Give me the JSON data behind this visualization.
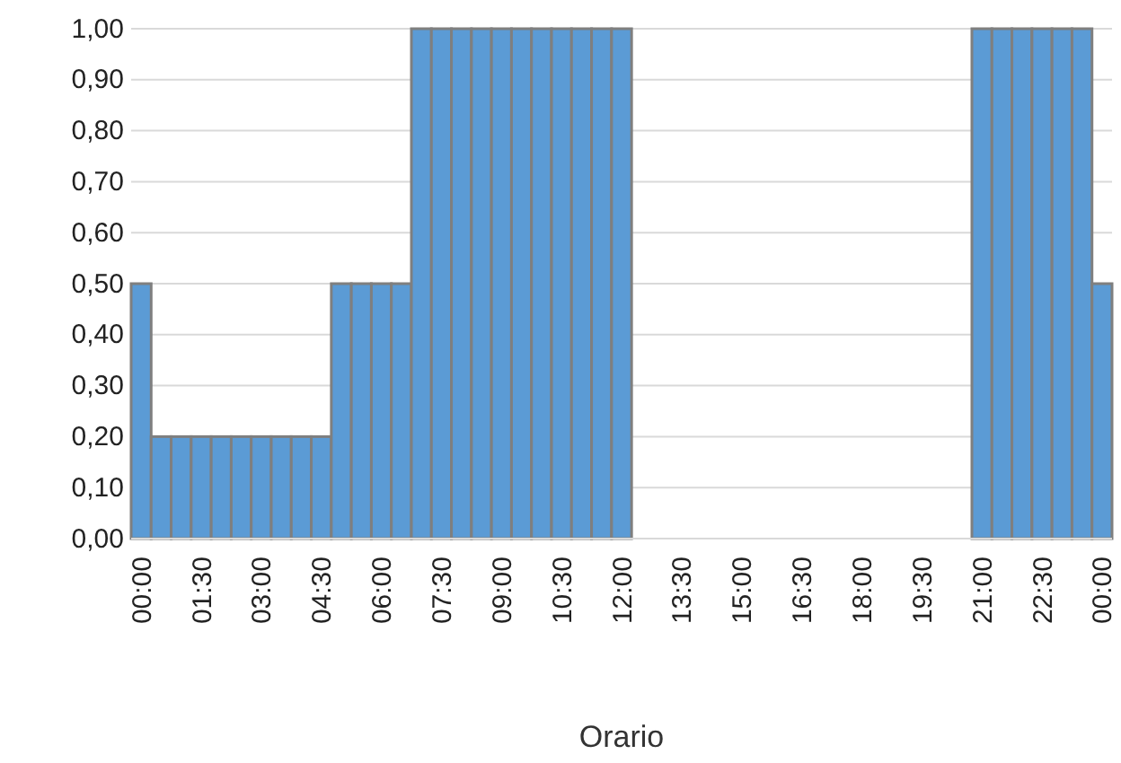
{
  "chart_data": {
    "type": "bar",
    "xlabel": "Orario",
    "categories": [
      "00:00",
      null,
      null,
      "01:30",
      null,
      null,
      "03:00",
      null,
      null,
      "04:30",
      null,
      null,
      "06:00",
      null,
      null,
      "07:30",
      null,
      null,
      "09:00",
      null,
      null,
      "10:30",
      null,
      null,
      "12:00",
      null,
      null,
      "13:30",
      null,
      null,
      "15:00",
      null,
      null,
      "16:30",
      null,
      null,
      "18:00",
      null,
      null,
      "19:30",
      null,
      null,
      "21:00",
      null,
      null,
      "22:30",
      null,
      null,
      "00:00"
    ],
    "values": [
      0.5,
      0.2,
      0.2,
      0.2,
      0.2,
      0.2,
      0.2,
      0.2,
      0.2,
      0.2,
      0.5,
      0.5,
      0.5,
      0.5,
      1,
      1,
      1,
      1,
      1,
      1,
      1,
      1,
      1,
      1,
      1,
      0,
      0,
      0,
      0,
      0,
      0,
      0,
      0,
      0,
      0,
      0,
      0,
      0,
      0,
      0,
      0,
      0,
      1,
      1,
      1,
      1,
      1,
      1,
      0.5
    ],
    "color": "#5b9bd5",
    "ylim": [
      0,
      1
    ],
    "yticks": [
      {
        "value": 0,
        "label": "0,00"
      },
      {
        "value": 0.1,
        "label": "0,10"
      },
      {
        "value": 0.2,
        "label": "0,20"
      },
      {
        "value": 0.3,
        "label": "0,30"
      },
      {
        "value": 0.4,
        "label": "0,40"
      },
      {
        "value": 0.5,
        "label": "0,50"
      },
      {
        "value": 0.6,
        "label": "0,60"
      },
      {
        "value": 0.7,
        "label": "0,70"
      },
      {
        "value": 0.8,
        "label": "0,80"
      },
      {
        "value": 0.9,
        "label": "0,90"
      },
      {
        "value": 1,
        "label": "1,00"
      }
    ],
    "grid": "y"
  }
}
